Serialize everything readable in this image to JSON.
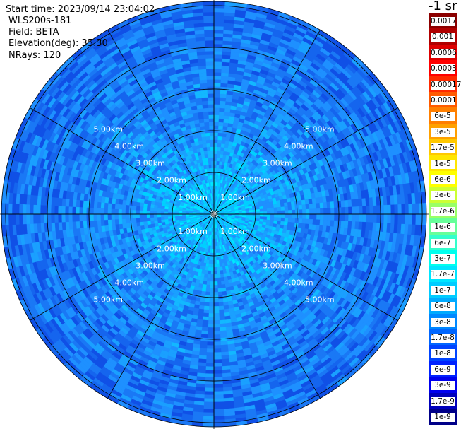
{
  "header": {
    "start_time": "Start time: 2023/09/14 23:04:02",
    "instrument": "WLS200s-181",
    "field": "Field: BETA",
    "elevation": "Elevation(deg): 35.30",
    "nrays": "NRays: 120"
  },
  "colorbar": {
    "unit": "-1 sr",
    "ticks": [
      "0.0017",
      "0.001",
      "0.0006",
      "0.0003",
      "0.00017",
      "0.0001",
      "6e-5",
      "3e-5",
      "1.7e-5",
      "1e-5",
      "6e-6",
      "3e-6",
      "1.7e-6",
      "1e-6",
      "6e-7",
      "3e-7",
      "1.7e-7",
      "1e-7",
      "6e-8",
      "3e-8",
      "1.7e-8",
      "1e-8",
      "6e-9",
      "3e-9",
      "1.7e-9",
      "1e-9"
    ],
    "colors": [
      "#8b0000",
      "#b00000",
      "#dd0000",
      "#ff0000",
      "#ff2a00",
      "#ff5a00",
      "#ff7f00",
      "#ffa000",
      "#ffc800",
      "#ffe600",
      "#ffff00",
      "#ccff33",
      "#99ff66",
      "#66ff99",
      "#33ffcc",
      "#00ffee",
      "#00e6ff",
      "#00ccff",
      "#00aaff",
      "#0088ff",
      "#0066ff",
      "#0044ff",
      "#0022ff",
      "#0000ee",
      "#0000bb",
      "#000088"
    ]
  },
  "chart_data": {
    "type": "heatmap",
    "projection": "polar (PPI scan)",
    "field": "BETA",
    "nrays": 120,
    "range_rings_km": [
      1.0,
      2.0,
      3.0,
      4.0,
      5.0
    ],
    "range_ring_labels": [
      "1.00km",
      "2.00km",
      "3.00km",
      "4.00km",
      "5.00km"
    ],
    "max_range_km": 5.1,
    "radial_lines_deg": [
      0,
      30,
      60,
      90,
      120,
      150,
      180,
      210,
      240,
      270,
      300,
      330
    ],
    "color_scale": "log",
    "value_range": [
      1e-09,
      0.0017
    ],
    "typical_values": [
      {
        "range_km": 0.5,
        "beta": 1e-07
      },
      {
        "range_km": 1.5,
        "beta": 5e-08
      },
      {
        "range_km": 2.5,
        "beta": 3e-08
      },
      {
        "range_km": 4.0,
        "beta": 2e-08
      },
      {
        "range_km": 5.0,
        "beta": 1.5e-08
      }
    ]
  }
}
